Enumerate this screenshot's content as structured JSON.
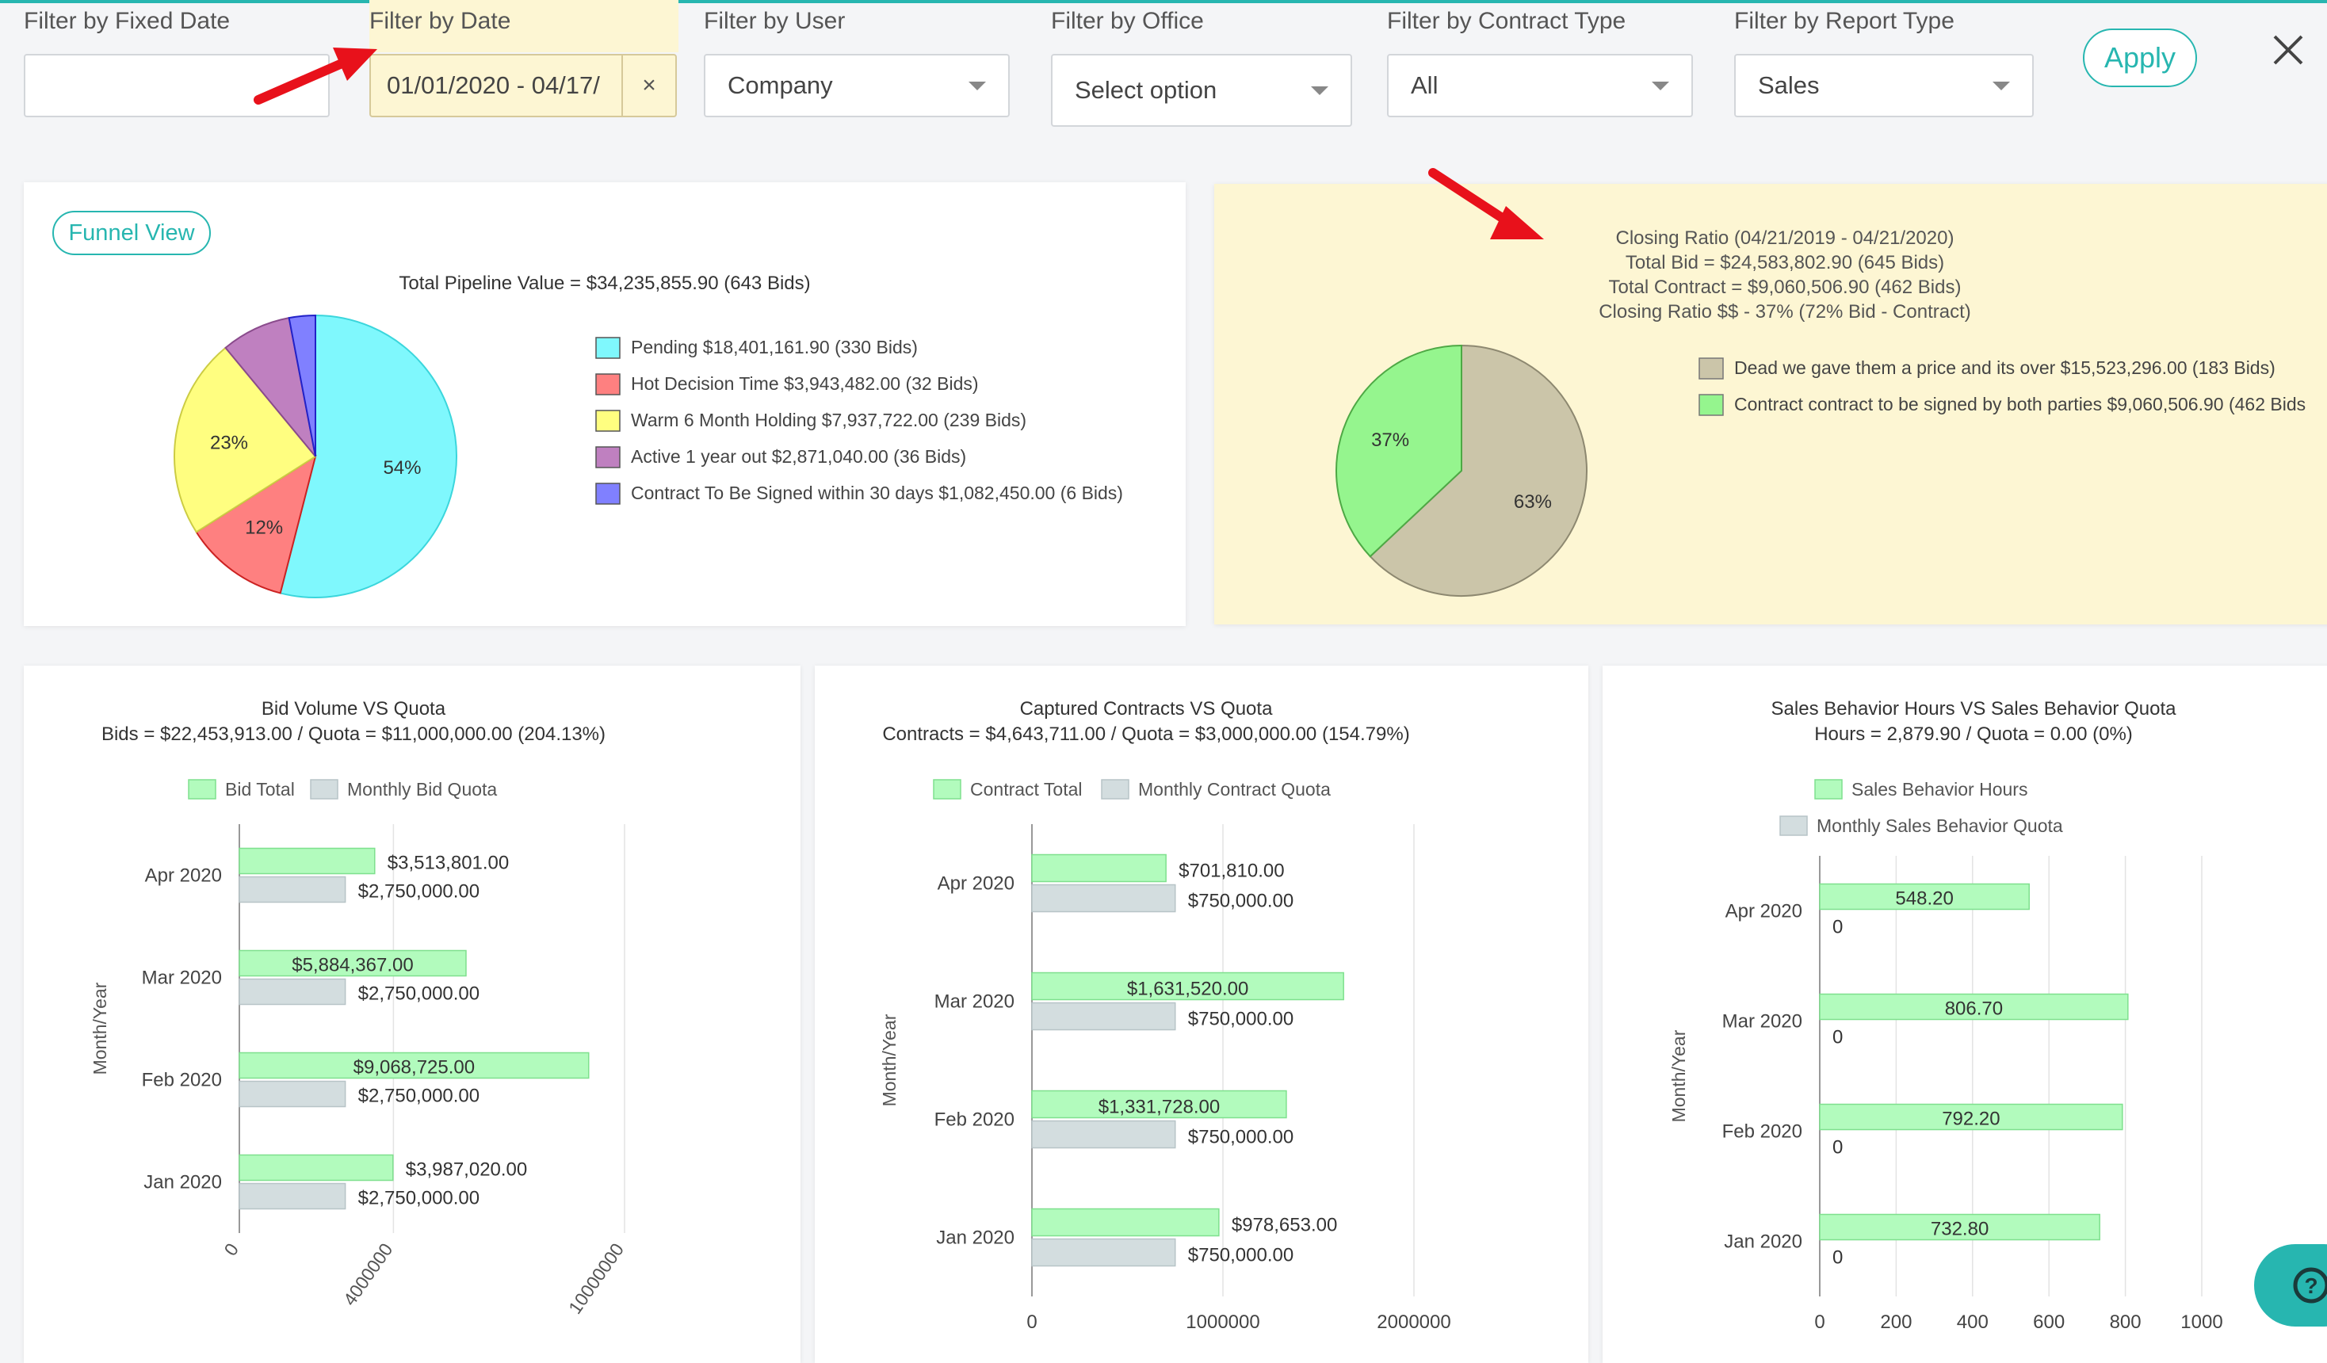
{
  "filters": {
    "fixed_date": {
      "label": "Filter by Fixed Date",
      "value": ""
    },
    "date": {
      "label": "Filter by Date",
      "value": "01/01/2020 - 04/17/",
      "clear": "×"
    },
    "user": {
      "label": "Filter by User",
      "value": "Company"
    },
    "office": {
      "label": "Filter by Office",
      "value": "Select option"
    },
    "contract_type": {
      "label": "Filter by Contract Type",
      "value": "All"
    },
    "report_type": {
      "label": "Filter by Report Type",
      "value": "Sales"
    }
  },
  "apply_label": "Apply",
  "funnel_button": "Funnel View",
  "colors": {
    "accent": "#27b6b0",
    "highlight": "#fdf6d3",
    "arrow": "#e8111b"
  },
  "chart_data": [
    {
      "type": "pie",
      "title": "Total Pipeline Value = $34,235,855.90 (643 Bids)",
      "legend_position": "right",
      "series": [
        {
          "name": "Pending $18,401,161.90 (330 Bids)",
          "value": 54,
          "label": "54%",
          "color": "#7ff8fd"
        },
        {
          "name": "Hot Decision Time  $3,943,482.00 (32 Bids)",
          "value": 12,
          "label": "12%",
          "color": "#fe8080"
        },
        {
          "name": "Warm 6 Month Holding $7,937,722.00 (239 Bids)",
          "value": 23,
          "label": "23%",
          "color": "#fffe80"
        },
        {
          "name": "Active 1 year out $2,871,040.00 (36 Bids)",
          "value": 8,
          "label": "",
          "color": "#bf80c0"
        },
        {
          "name": "Contract To Be Signed within 30 days $1,082,450.00 (6 Bids)",
          "value": 3,
          "label": "",
          "color": "#8080ff"
        }
      ]
    },
    {
      "type": "pie",
      "title": [
        "Closing Ratio (04/21/2019 - 04/21/2020)",
        "Total Bid = $24,583,802.90 (645 Bids)",
        "Total Contract = $9,060,506.90 (462 Bids)",
        "Closing Ratio $$ - 37% (72% Bid - Contract)"
      ],
      "legend_position": "right",
      "series": [
        {
          "name": "Dead we gave them a price and its over $15,523,296.00 (183 Bids)",
          "value": 63,
          "label": "63%",
          "color": "#cbc5a9"
        },
        {
          "name": "Contract contract to be signed by both parties $9,060,506.90 (462 Bids",
          "value": 37,
          "label": "37%",
          "color": "#95f58e"
        }
      ]
    },
    {
      "type": "bar",
      "orientation": "horizontal",
      "title": [
        "Bid Volume VS Quota",
        "Bids = $22,453,913.00 / Quota = $11,000,000.00 (204.13%)"
      ],
      "ylabel": "Month/Year",
      "legend_position": "top",
      "categories": [
        "Apr 2020",
        "Mar 2020",
        "Feb 2020",
        "Jan 2020"
      ],
      "series": [
        {
          "name": "Bid Total",
          "values": [
            3513801,
            5884367,
            9068725,
            3987020
          ],
          "labels": [
            "$3,513,801.00",
            "$5,884,367.00",
            "$9,068,725.00",
            "$3,987,020.00"
          ]
        },
        {
          "name": "Monthly Bid Quota",
          "values": [
            2750000,
            2750000,
            2750000,
            2750000
          ],
          "labels": [
            "$2,750,000.00",
            "$2,750,000.00",
            "$2,750,000.00",
            "$2,750,000.00"
          ]
        }
      ],
      "xlim": [
        0,
        10000000
      ],
      "xticks": [
        "0",
        "4000000",
        "10000000"
      ],
      "xtick_values": [
        0,
        4000000,
        10000000
      ]
    },
    {
      "type": "bar",
      "orientation": "horizontal",
      "title": [
        "Captured Contracts VS Quota",
        "Contracts = $4,643,711.00 / Quota = $3,000,000.00 (154.79%)"
      ],
      "ylabel": "Month/Year",
      "legend_position": "top",
      "categories": [
        "Apr 2020",
        "Mar 2020",
        "Feb 2020",
        "Jan 2020"
      ],
      "series": [
        {
          "name": "Contract Total",
          "values": [
            701810,
            1631520,
            1331728,
            978653
          ],
          "labels": [
            "$701,810.00",
            "$1,631,520.00",
            "$1,331,728.00",
            "$978,653.00"
          ]
        },
        {
          "name": "Monthly Contract Quota",
          "values": [
            750000,
            750000,
            750000,
            750000
          ],
          "labels": [
            "$750,000.00",
            "$750,000.00",
            "$750,000.00",
            "$750,000.00"
          ]
        }
      ],
      "xlim": [
        0,
        2000000
      ],
      "xticks": [
        "0",
        "1000000",
        "2000000"
      ],
      "xtick_values": [
        0,
        1000000,
        2000000
      ]
    },
    {
      "type": "bar",
      "orientation": "horizontal",
      "title": [
        "Sales Behavior Hours VS Sales Behavior Quota",
        "Hours = 2,879.90 / Quota = 0.00 (0%)"
      ],
      "ylabel": "Month/Year",
      "legend_position": "top",
      "categories": [
        "Apr 2020",
        "Mar 2020",
        "Feb 2020",
        "Jan 2020"
      ],
      "series": [
        {
          "name": "Sales Behavior Hours",
          "values": [
            548.2,
            806.7,
            792.2,
            732.8
          ],
          "labels": [
            "548.20",
            "806.70",
            "792.20",
            "732.80"
          ]
        },
        {
          "name": "Monthly Sales Behavior Quota",
          "values": [
            0,
            0,
            0,
            0
          ],
          "labels": [
            "0",
            "0",
            "0",
            "0"
          ]
        }
      ],
      "xlim": [
        0,
        1000
      ],
      "xticks": [
        "0",
        "200",
        "400",
        "600",
        "800",
        "1000"
      ],
      "xtick_values": [
        0,
        200,
        400,
        600,
        800,
        1000
      ]
    }
  ]
}
